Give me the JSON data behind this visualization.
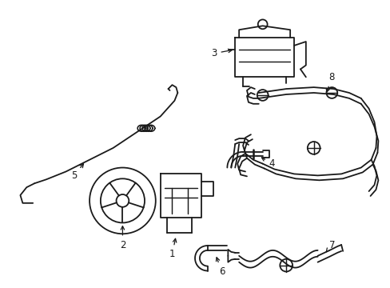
{
  "background_color": "#ffffff",
  "line_color": "#1a1a1a",
  "line_width": 1.3,
  "label_fontsize": 8.5,
  "fig_width": 4.89,
  "fig_height": 3.6,
  "dpi": 100
}
